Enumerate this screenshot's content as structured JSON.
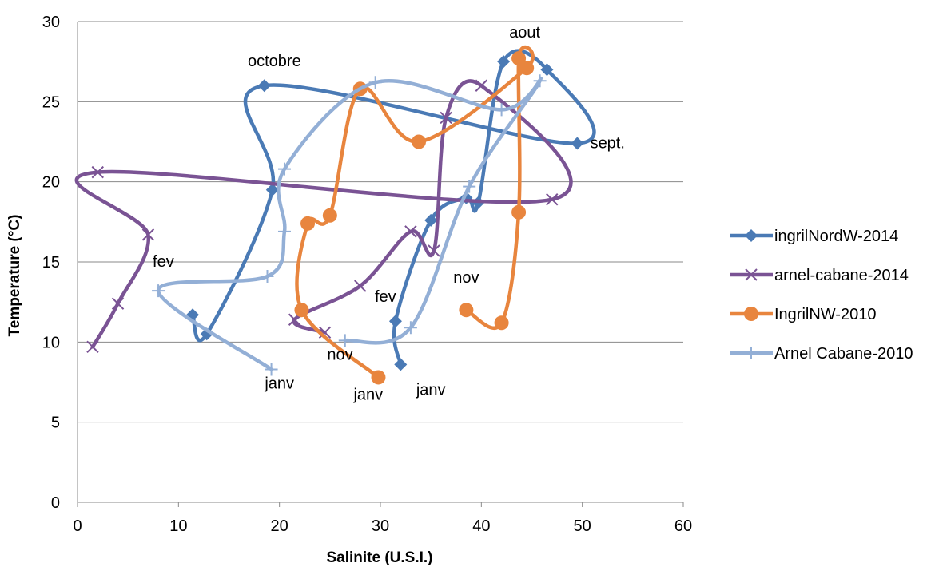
{
  "chart_data": {
    "type": "scatter",
    "title": "",
    "xlabel": "Salinite (U.S.I.)",
    "ylabel": "Temperature (°C)",
    "xlim": [
      0,
      60
    ],
    "ylim": [
      0,
      30
    ],
    "x_ticks": [
      "0",
      "10",
      "20",
      "30",
      "40",
      "50",
      "60"
    ],
    "y_ticks": [
      "0",
      "5",
      "10",
      "15",
      "20",
      "25",
      "30"
    ],
    "grid": "horizontal",
    "legend_position": "right",
    "smoothed_lines": true,
    "series": [
      {
        "name": "ingrilNordW-2014",
        "color": "#4a7ab5",
        "marker": "diamond",
        "points": [
          [
            32.0,
            8.6
          ],
          [
            31.5,
            11.3
          ],
          [
            35.0,
            17.6
          ],
          [
            38.5,
            19.0
          ],
          [
            39.7,
            18.7
          ],
          [
            42.2,
            27.5
          ],
          [
            46.5,
            27.0
          ],
          [
            49.5,
            22.4
          ],
          [
            18.5,
            26.0
          ],
          [
            19.3,
            19.5
          ],
          [
            12.8,
            10.5
          ],
          [
            11.4,
            11.7
          ]
        ]
      },
      {
        "name": "arnel-cabane-2014",
        "color": "#7a5394",
        "marker": "x",
        "points": [
          [
            1.5,
            9.7
          ],
          [
            4.0,
            12.4
          ],
          [
            7.0,
            16.7
          ],
          [
            2.0,
            20.6
          ],
          [
            47.0,
            18.9
          ],
          [
            40.0,
            26.0
          ],
          [
            36.5,
            24.0
          ],
          [
            35.3,
            15.7
          ],
          [
            33.0,
            16.9
          ],
          [
            28.0,
            13.5
          ],
          [
            21.5,
            11.4
          ],
          [
            24.5,
            10.6
          ]
        ]
      },
      {
        "name": "IngrilNW-2010",
        "color": "#e8853e",
        "marker": "circle",
        "points": [
          [
            38.5,
            12.0
          ],
          [
            42.0,
            11.2
          ],
          [
            43.7,
            18.1
          ],
          [
            43.7,
            27.7
          ],
          [
            44.5,
            27.1
          ],
          [
            33.8,
            22.5
          ],
          [
            28.0,
            25.8
          ],
          [
            25.0,
            17.9
          ],
          [
            22.8,
            17.4
          ],
          [
            22.2,
            12.0
          ],
          [
            29.8,
            7.8
          ]
        ]
      },
      {
        "name": "Arnel Cabane-2010",
        "color": "#93afd6",
        "marker": "plus",
        "points": [
          [
            19.2,
            8.3
          ],
          [
            8.0,
            13.2
          ],
          [
            18.8,
            14.1
          ],
          [
            20.5,
            16.9
          ],
          [
            20.5,
            20.8
          ],
          [
            29.5,
            26.2
          ],
          [
            42.0,
            24.5
          ],
          [
            45.8,
            26.3
          ],
          [
            38.8,
            19.7
          ],
          [
            33.0,
            10.9
          ],
          [
            26.5,
            10.1
          ]
        ]
      }
    ],
    "annotations": [
      {
        "text": "aout",
        "x": 44.3,
        "y": 29.0
      },
      {
        "text": "octobre",
        "x": 19.5,
        "y": 27.2
      },
      {
        "text": "sept.",
        "x": 52.5,
        "y": 22.1
      },
      {
        "text": "fev",
        "x": 8.5,
        "y": 14.7
      },
      {
        "text": "fev",
        "x": 30.5,
        "y": 12.5
      },
      {
        "text": "nov",
        "x": 38.5,
        "y": 13.7
      },
      {
        "text": "nov",
        "x": 26.0,
        "y": 8.9
      },
      {
        "text": "janv",
        "x": 20.0,
        "y": 7.1
      },
      {
        "text": "janv",
        "x": 28.8,
        "y": 6.4
      },
      {
        "text": "janv",
        "x": 35.0,
        "y": 6.7
      }
    ]
  }
}
